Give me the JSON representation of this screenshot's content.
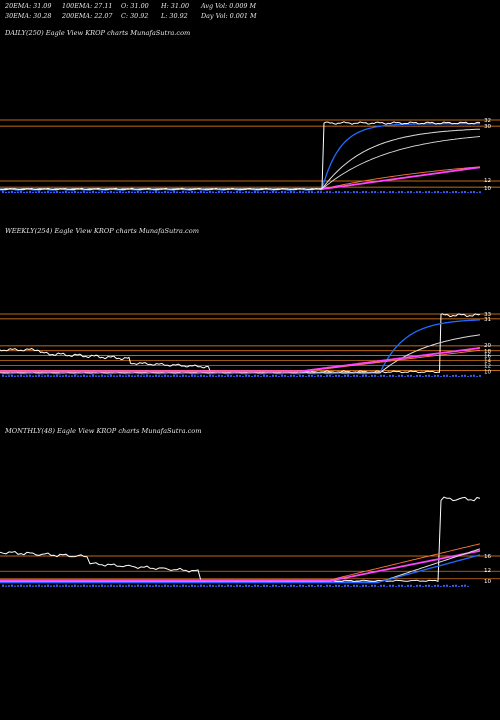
{
  "header": {
    "ema20": "20EMA: 31.09",
    "ema100": "100EMA: 27.11",
    "open": "O: 31.00",
    "high": "H: 31.00",
    "avg_vol": "Avg Vol: 0.009 M",
    "ema30": "30EMA: 30.28",
    "ema200": "200EMA: 22.07",
    "close": "C: 30.92",
    "low": "L: 30.92",
    "day_vol": "Day Vol: 0.001 M"
  },
  "colors": {
    "background": "#000000",
    "price": "#ffffff",
    "ema_fast": "#1e6bff",
    "ema_mid": "#dddddd",
    "ema_slow": "#ff44ff",
    "ema_long": "#ff7a3a",
    "level_line": "#ff8c1a",
    "volume": "#3a5cff"
  },
  "chart_data": [
    {
      "type": "line",
      "title": "DAILY(250) Eagle   View  KROP charts MunafaSutra.com",
      "price_levels": [
        32,
        30,
        12,
        10
      ],
      "level_tick_labels": [
        "32",
        "30",
        "12",
        "10"
      ],
      "series": [
        {
          "role": "price",
          "color": "#ffffff"
        },
        {
          "role": "ema_fast",
          "color": "#1e6bff"
        },
        {
          "role": "ema_mid",
          "color": "#dddddd"
        },
        {
          "role": "ema_long",
          "color": "#ff7a3a"
        },
        {
          "role": "ema_slow",
          "color": "#ff44ff"
        }
      ],
      "grid": true
    },
    {
      "type": "line",
      "title": "WEEKLY(254) Eagle   View  KROP charts MunafaSutra.com",
      "price_levels": [
        33,
        31,
        20,
        18,
        16,
        14,
        12,
        10
      ],
      "level_tick_labels": [
        "33",
        "31",
        "20",
        "18",
        "16",
        "14",
        "12",
        "10"
      ],
      "series": [
        {
          "role": "price",
          "color": "#ffffff"
        },
        {
          "role": "ema_fast",
          "color": "#1e6bff"
        },
        {
          "role": "ema_mid",
          "color": "#dddddd"
        },
        {
          "role": "ema_long",
          "color": "#ff7a3a"
        },
        {
          "role": "ema_slow",
          "color": "#ff44ff"
        }
      ],
      "grid": true
    },
    {
      "type": "line",
      "title": "MONTHLY(48) Eagle   View  KROP charts MunafaSutra.com",
      "price_levels": [
        16,
        12,
        10
      ],
      "level_tick_labels": [
        "16",
        "12",
        "10"
      ],
      "series": [
        {
          "role": "price",
          "color": "#ffffff"
        },
        {
          "role": "ema_fast",
          "color": "#1e6bff"
        },
        {
          "role": "ema_mid",
          "color": "#dddddd"
        },
        {
          "role": "ema_long",
          "color": "#ff7a3a"
        },
        {
          "role": "ema_slow",
          "color": "#ff44ff"
        }
      ],
      "grid": true
    }
  ]
}
